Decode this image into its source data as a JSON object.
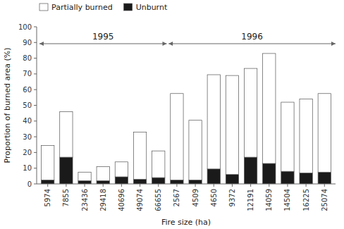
{
  "chart_data": {
    "type": "bar",
    "stacked": true,
    "categories": [
      "5974",
      "7855",
      "23436",
      "29418",
      "40696",
      "49074",
      "66655",
      "2567",
      "4509",
      "4650",
      "9372",
      "12191",
      "14059",
      "14504",
      "16225",
      "25074"
    ],
    "series": [
      {
        "name": "Unburnt",
        "color": "#1a1a1a",
        "values": [
          2.5,
          17.0,
          2.0,
          2.0,
          4.5,
          3.0,
          4.0,
          2.5,
          2.5,
          9.5,
          6.0,
          17.0,
          13.0,
          8.0,
          7.0,
          7.5
        ]
      },
      {
        "name": "Partially burned",
        "color": "#ffffff",
        "values": [
          22.0,
          29.0,
          5.5,
          9.0,
          9.5,
          30.0,
          17.0,
          55.0,
          38.0,
          60.0,
          63.0,
          56.5,
          70.0,
          44.0,
          47.0,
          50.0
        ]
      }
    ],
    "xlabel": "Fire size (ha)",
    "ylabel": "Proportion of burned area (%)",
    "ylim": [
      0,
      100
    ],
    "yticks": [
      0,
      10,
      20,
      30,
      40,
      50,
      60,
      70,
      80,
      90,
      100
    ],
    "grid": false,
    "legend": "upper left",
    "annotations": [
      {
        "text": "1995",
        "count": 7
      },
      {
        "text": "1996",
        "count": 9
      }
    ]
  }
}
